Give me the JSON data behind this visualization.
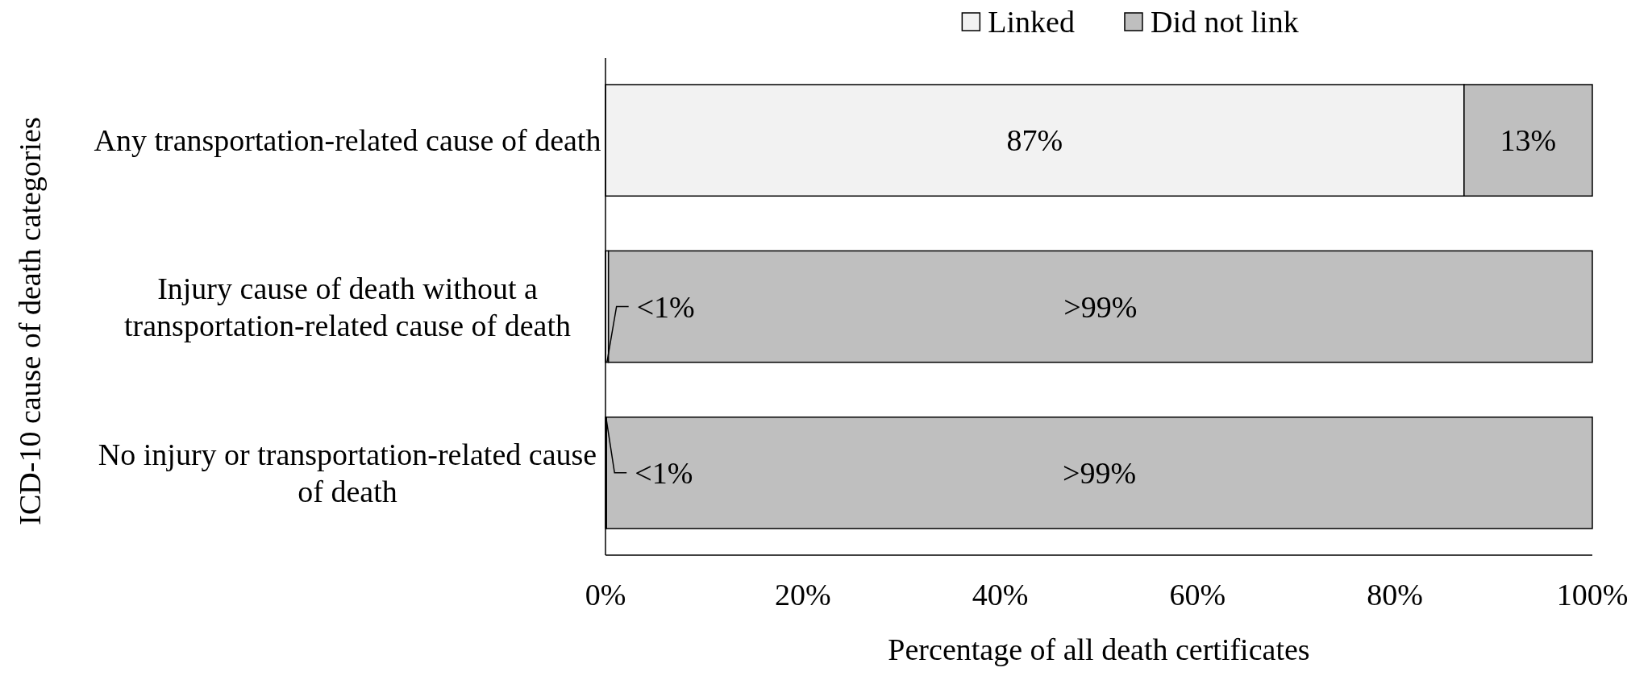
{
  "chart_data": {
    "type": "bar",
    "orientation": "horizontal",
    "stacked": true,
    "categories": [
      "Any transportation-related cause of death",
      "Injury cause of death without a transportation-related cause of death",
      "No injury or transportation-related cause of death"
    ],
    "series": [
      {
        "name": "Linked",
        "color": "#f2f2f2",
        "values": [
          87,
          0.3,
          0.1
        ],
        "value_labels": [
          "87%",
          "<1%",
          "<1%"
        ]
      },
      {
        "name": "Did not link",
        "color": "#bfbfbf",
        "values": [
          13,
          99.7,
          99.9
        ],
        "value_labels": [
          "13%",
          ">99%",
          ">99%"
        ]
      }
    ],
    "xlim": [
      0,
      100
    ],
    "xticks": [
      {
        "value": 0,
        "label": "0%"
      },
      {
        "value": 20,
        "label": "20%"
      },
      {
        "value": 40,
        "label": "40%"
      },
      {
        "value": 60,
        "label": "60%"
      },
      {
        "value": 80,
        "label": "80%"
      },
      {
        "value": 100,
        "label": "100%"
      }
    ],
    "xlabel": "Percentage of all death certificates",
    "ylabel": "ICD-10 cause of death categories",
    "legend": "top",
    "grid": false
  }
}
